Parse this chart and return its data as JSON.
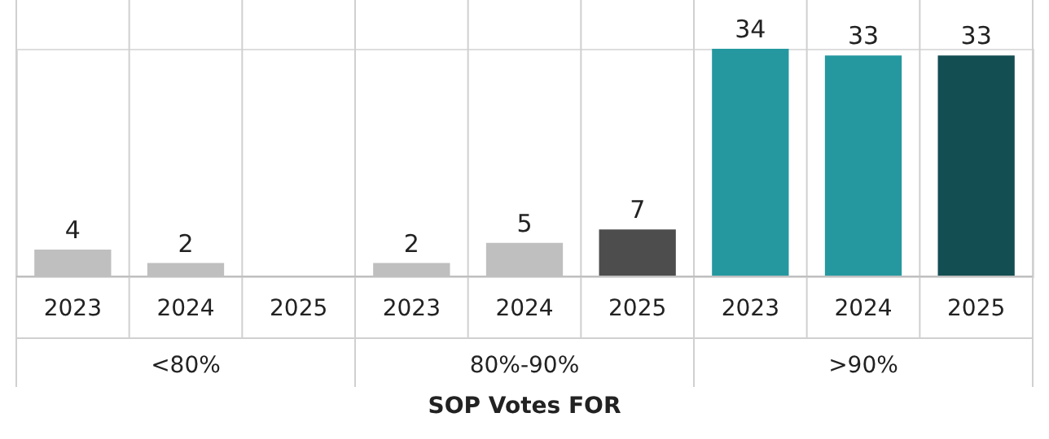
{
  "chart_data": {
    "type": "bar",
    "xlabel": "SOP Votes FOR",
    "categories": [
      "2023",
      "2024",
      "2025",
      "2023",
      "2024",
      "2025",
      "2023",
      "2024",
      "2025"
    ],
    "values": [
      4,
      2,
      null,
      2,
      5,
      7,
      34,
      33,
      33
    ],
    "colors": [
      "#bfbfbf",
      "#bfbfbf",
      "#bfbfbf",
      "#bfbfbf",
      "#bfbfbf",
      "#4d4d4d",
      "#25989f",
      "#25989f",
      "#134e52"
    ],
    "data_labels": true,
    "grid": "x",
    "annotations": [
      "<80%",
      "80%-90%",
      ">90%"
    ]
  }
}
